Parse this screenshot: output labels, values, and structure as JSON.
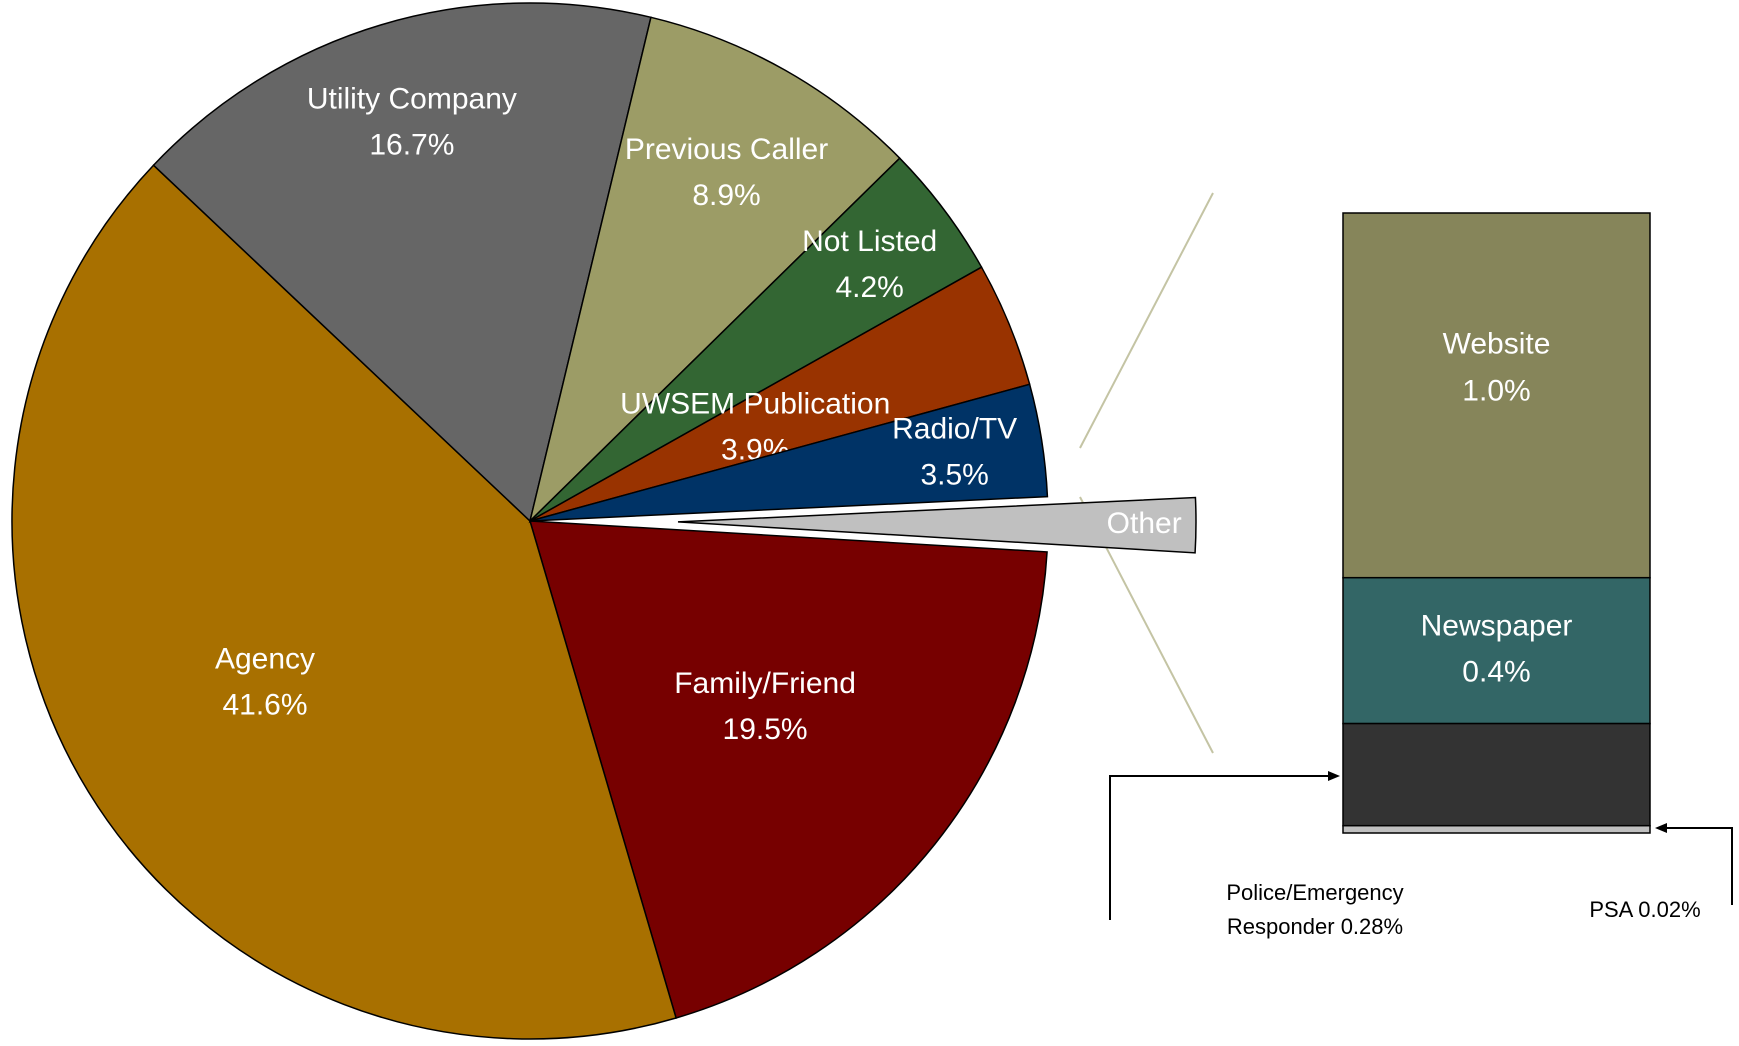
{
  "chart_data": [
    {
      "type": "pie",
      "categories": [
        "Other",
        "Family/Friend",
        "Agency",
        "Utility Company",
        "Previous Caller",
        "Not Listed",
        "UWSEM Publication",
        "Radio/TV"
      ],
      "values": [
        1.7,
        19.5,
        41.6,
        16.7,
        8.9,
        4.2,
        3.9,
        3.5
      ],
      "value_labels": [
        null,
        "19.5%",
        "41.6%",
        "16.7%",
        "8.9%",
        "4.2%",
        "3.9%",
        "3.5%"
      ],
      "colors": [
        "#c0c0c0",
        "#770000",
        "#a87000",
        "#666666",
        "#9c9c66",
        "#336633",
        "#993300",
        "#003366"
      ]
    },
    {
      "type": "bar",
      "categories": [
        "Website",
        "Newspaper",
        "Police/Emergency Responder",
        "PSA"
      ],
      "values": [
        1.0,
        0.4,
        0.28,
        0.02
      ],
      "value_labels": [
        "1.0%",
        "0.4%",
        "0.28%",
        "0.02%"
      ],
      "colors": [
        "#86855a",
        "#336666",
        "#333333",
        "#c0c0c0"
      ]
    }
  ]
}
